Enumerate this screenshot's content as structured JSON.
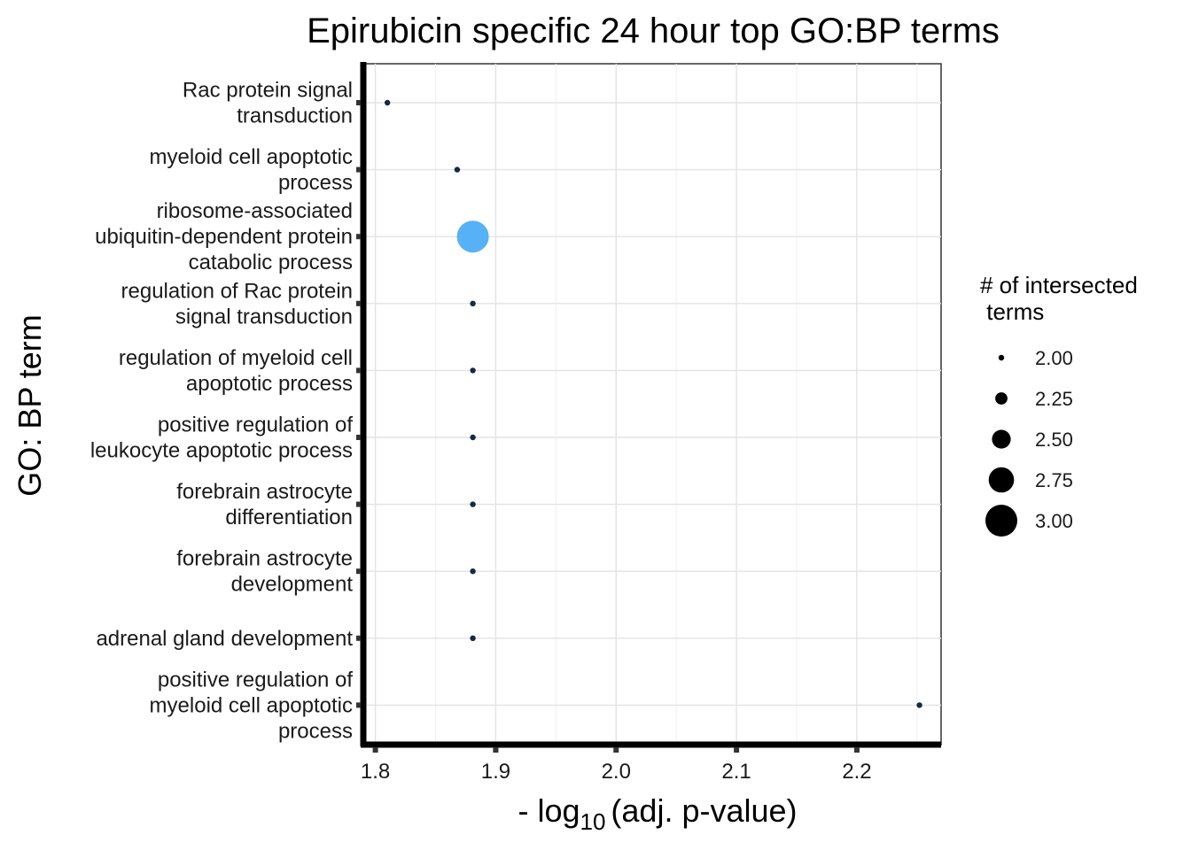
{
  "chart_data": {
    "type": "scatter",
    "title": "Epirubicin specific 24 hour top GO:BP terms",
    "xlabel_prefix": "- log",
    "xlabel_sub": "10",
    "xlabel_suffix": "(adj. p-value)",
    "ylabel": "GO: BP term",
    "xlim": [
      1.79,
      2.27
    ],
    "x_ticks": [
      "1.8",
      "1.9",
      "2.0",
      "2.1",
      "2.2"
    ],
    "grid": true,
    "categories": [
      [
        "Rac protein signal",
        "transduction"
      ],
      [
        "myeloid cell apoptotic",
        "process"
      ],
      [
        "ribosome-associated",
        "ubiquitin-dependent protein",
        "catabolic process"
      ],
      [
        "regulation of Rac protein",
        "signal transduction"
      ],
      [
        "regulation of myeloid cell",
        "apoptotic process"
      ],
      [
        "positive regulation of",
        "leukocyte apoptotic process"
      ],
      [
        "forebrain astrocyte",
        "differentiation"
      ],
      [
        "forebrain astrocyte",
        "development"
      ],
      [
        "adrenal gland development"
      ],
      [
        "positive regulation of",
        "myeloid cell apoptotic",
        "process"
      ]
    ],
    "points": [
      {
        "x": 1.81,
        "size": 2
      },
      {
        "x": 1.868,
        "size": 2
      },
      {
        "x": 1.881,
        "size": 3
      },
      {
        "x": 1.881,
        "size": 2
      },
      {
        "x": 1.881,
        "size": 2
      },
      {
        "x": 1.881,
        "size": 2
      },
      {
        "x": 1.881,
        "size": 2
      },
      {
        "x": 1.881,
        "size": 2
      },
      {
        "x": 1.881,
        "size": 2
      },
      {
        "x": 2.252,
        "size": 2
      }
    ],
    "colors": {
      "small": "#132b43",
      "large": "#56b1f7"
    },
    "legend": {
      "title_lines": [
        "# of intersected",
        " terms"
      ],
      "labels": [
        "2.00",
        "2.25",
        "2.50",
        "2.75",
        "3.00"
      ],
      "values": [
        2.0,
        2.25,
        2.5,
        2.75,
        3.0
      ],
      "placement": "right"
    }
  }
}
